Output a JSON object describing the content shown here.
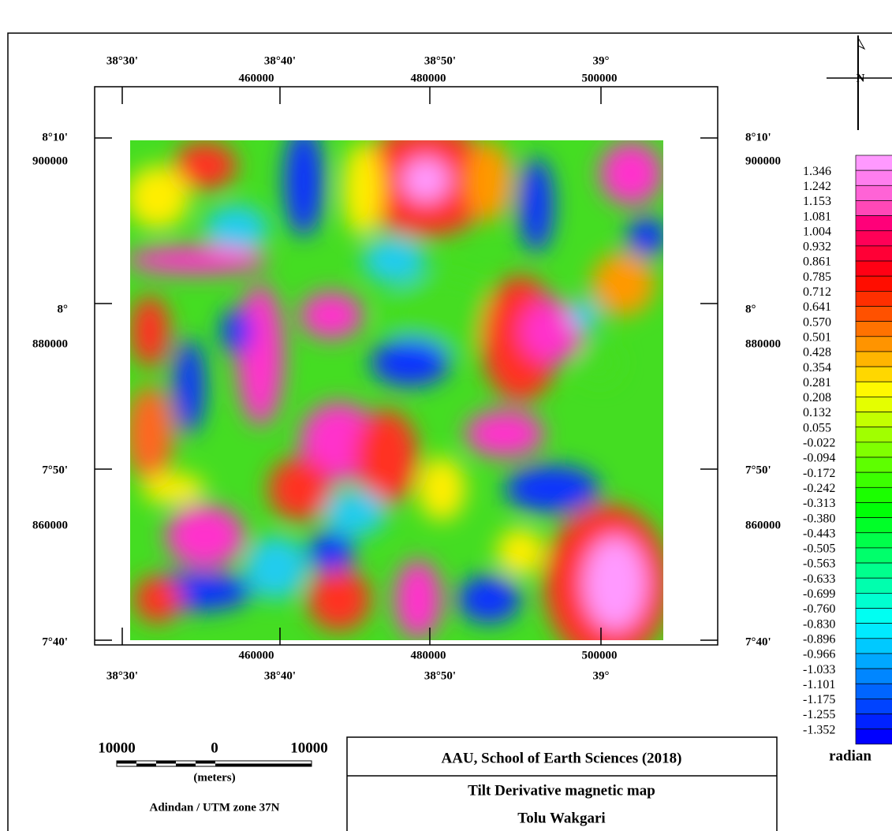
{
  "map": {
    "top_degrees": [
      "38°30'",
      "38°40'",
      "38°50'",
      "39°"
    ],
    "top_utm": [
      "460000",
      "480000",
      "500000"
    ],
    "left_labels": [
      "8°10'",
      "900000",
      "8°",
      "880000",
      "7°50'",
      "860000",
      "7°40'"
    ],
    "right_labels": [
      "8°10'",
      "900000",
      "8°",
      "880000",
      "7°50'",
      "860000",
      "7°40'"
    ],
    "bottom_utm": [
      "460000",
      "480000",
      "500000"
    ],
    "bottom_degrees": [
      "38°30'",
      "38°40'",
      "38°50'",
      "39°"
    ],
    "north": "N",
    "colorbar": {
      "labels": [
        "1.346",
        "1.242",
        "1.153",
        "1.081",
        "1.004",
        "0.932",
        "0.861",
        "0.785",
        "0.712",
        "0.641",
        "0.570",
        "0.501",
        "0.428",
        "0.354",
        "0.281",
        "0.208",
        "0.132",
        "0.055",
        "-0.022",
        "-0.094",
        "-0.172",
        "-0.242",
        "-0.313",
        "-0.380",
        "-0.443",
        "-0.505",
        "-0.563",
        "-0.633",
        "-0.699",
        "-0.760",
        "-0.830",
        "-0.896",
        "-0.966",
        "-1.033",
        "-1.101",
        "-1.175",
        "-1.255",
        "-1.352"
      ],
      "unit": "radian"
    },
    "scale_bar": {
      "labels": [
        "10000",
        "0",
        "10000"
      ],
      "unit": "(meters)",
      "projection": "Adindan / UTM zone 37N"
    },
    "title_box": {
      "institution": "AAU, School of Earth Sciences (2018)",
      "title": "Tilt Derivative magnetic map",
      "author": "Tolu Wakgari"
    }
  }
}
